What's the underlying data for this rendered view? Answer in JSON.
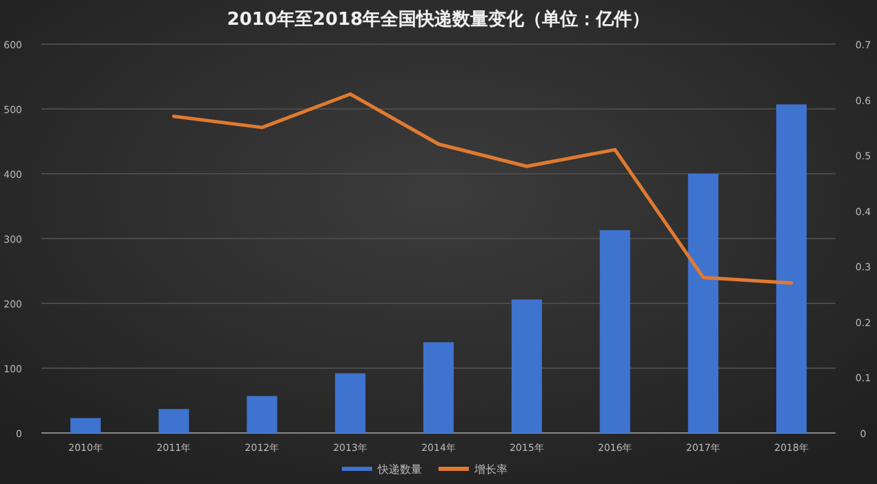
{
  "chart_data": {
    "type": "bar",
    "title": "2010年至2018年全国快递数量变化（单位：亿件）",
    "categories": [
      "2010年",
      "2011年",
      "2012年",
      "2013年",
      "2014年",
      "2015年",
      "2016年",
      "2017年",
      "2018年"
    ],
    "series": [
      {
        "name": "快递数量",
        "color": "#3f73d0",
        "values": [
          23,
          37,
          57,
          92,
          140,
          206,
          313,
          400,
          507
        ]
      },
      {
        "name": "增长率",
        "type": "line",
        "axis": "y2",
        "color": "#e07a30",
        "values": [
          null,
          0.57,
          0.55,
          0.61,
          0.52,
          0.48,
          0.51,
          0.28,
          0.27
        ]
      }
    ],
    "ylim": [
      0,
      600
    ],
    "yticks": [
      0,
      100,
      200,
      300,
      400,
      500,
      600
    ],
    "y2lim": [
      0,
      0.7
    ],
    "y2ticks": [
      0,
      0.1,
      0.2,
      0.3,
      0.4,
      0.5,
      0.6,
      0.7
    ],
    "grid": "y",
    "legend": "bottom"
  }
}
